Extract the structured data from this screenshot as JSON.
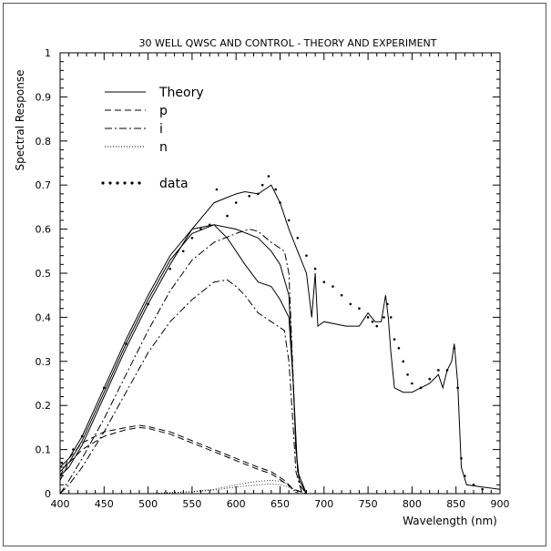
{
  "chart_data": {
    "type": "line",
    "title": "30 WELL QWSC AND CONTROL - THEORY AND EXPERIMENT",
    "xlabel": "Wavelength (nm)",
    "ylabel": "Spectral Response",
    "xlim": [
      400,
      900
    ],
    "ylim": [
      0,
      1
    ],
    "x_ticks": [
      400,
      450,
      500,
      550,
      600,
      650,
      700,
      750,
      800,
      850,
      900
    ],
    "y_ticks": [
      0,
      0.1,
      0.2,
      0.3,
      0.4,
      0.5,
      0.6,
      0.7,
      0.8,
      0.9,
      1
    ],
    "grid": false,
    "legend_position": "top-left",
    "legend": [
      {
        "label": "Theory",
        "style": "solid"
      },
      {
        "label": "p",
        "style": "dashed"
      },
      {
        "label": "i",
        "style": "dashdot"
      },
      {
        "label": "n",
        "style": "dotted"
      },
      {
        "label": "data",
        "style": "dots"
      }
    ],
    "series": [
      {
        "name": "Theory",
        "style": "solid",
        "points": [
          [
            400,
            0.05
          ],
          [
            410,
            0.07
          ],
          [
            425,
            0.12
          ],
          [
            450,
            0.23
          ],
          [
            475,
            0.34
          ],
          [
            500,
            0.44
          ],
          [
            525,
            0.53
          ],
          [
            550,
            0.59
          ],
          [
            575,
            0.61
          ],
          [
            590,
            0.58
          ],
          [
            600,
            0.55
          ],
          [
            610,
            0.52
          ],
          [
            625,
            0.48
          ],
          [
            640,
            0.47
          ],
          [
            650,
            0.44
          ],
          [
            660,
            0.4
          ],
          [
            665,
            0.25
          ],
          [
            668,
            0.1
          ],
          [
            672,
            0.03
          ],
          [
            680,
            0.0
          ],
          [
            700,
            0.0
          ],
          [
            800,
            0.0
          ],
          [
            900,
            0.0
          ]
        ]
      },
      {
        "name": "Theory",
        "style": "solid",
        "points": [
          [
            400,
            0.04
          ],
          [
            410,
            0.06
          ],
          [
            425,
            0.11
          ],
          [
            450,
            0.22
          ],
          [
            475,
            0.33
          ],
          [
            500,
            0.43
          ],
          [
            525,
            0.52
          ],
          [
            550,
            0.6
          ],
          [
            575,
            0.66
          ],
          [
            600,
            0.68
          ],
          [
            610,
            0.685
          ],
          [
            625,
            0.68
          ],
          [
            640,
            0.7
          ],
          [
            650,
            0.66
          ],
          [
            660,
            0.6
          ],
          [
            670,
            0.55
          ],
          [
            680,
            0.5
          ],
          [
            686,
            0.4
          ],
          [
            690,
            0.5
          ],
          [
            693,
            0.38
          ],
          [
            700,
            0.39
          ],
          [
            725,
            0.38
          ],
          [
            740,
            0.38
          ],
          [
            750,
            0.41
          ],
          [
            758,
            0.39
          ],
          [
            765,
            0.39
          ],
          [
            770,
            0.45
          ],
          [
            773,
            0.4
          ],
          [
            776,
            0.32
          ],
          [
            780,
            0.24
          ],
          [
            790,
            0.23
          ],
          [
            800,
            0.23
          ],
          [
            810,
            0.24
          ],
          [
            820,
            0.25
          ],
          [
            830,
            0.27
          ],
          [
            835,
            0.24
          ],
          [
            840,
            0.28
          ],
          [
            845,
            0.3
          ],
          [
            848,
            0.34
          ],
          [
            852,
            0.25
          ],
          [
            856,
            0.06
          ],
          [
            862,
            0.02
          ],
          [
            880,
            0.015
          ],
          [
            900,
            0.01
          ]
        ]
      },
      {
        "name": "Theory",
        "style": "solid",
        "points": [
          [
            400,
            0.06
          ],
          [
            410,
            0.08
          ],
          [
            425,
            0.13
          ],
          [
            450,
            0.24
          ],
          [
            475,
            0.35
          ],
          [
            500,
            0.45
          ],
          [
            525,
            0.54
          ],
          [
            550,
            0.6
          ],
          [
            575,
            0.61
          ],
          [
            600,
            0.6
          ],
          [
            625,
            0.58
          ],
          [
            640,
            0.55
          ],
          [
            650,
            0.52
          ],
          [
            660,
            0.45
          ],
          [
            665,
            0.25
          ],
          [
            670,
            0.05
          ],
          [
            680,
            0.0
          ],
          [
            700,
            0.0
          ],
          [
            900,
            0.0
          ]
        ]
      },
      {
        "name": "p",
        "style": "dashed",
        "points": [
          [
            400,
            0.04
          ],
          [
            410,
            0.08
          ],
          [
            425,
            0.115
          ],
          [
            450,
            0.14
          ],
          [
            475,
            0.15
          ],
          [
            490,
            0.155
          ],
          [
            500,
            0.152
          ],
          [
            525,
            0.14
          ],
          [
            550,
            0.12
          ],
          [
            575,
            0.1
          ],
          [
            600,
            0.08
          ],
          [
            625,
            0.06
          ],
          [
            640,
            0.05
          ],
          [
            655,
            0.03
          ],
          [
            665,
            0.01
          ],
          [
            680,
            0.0
          ],
          [
            900,
            0.0
          ]
        ]
      },
      {
        "name": "p",
        "style": "dashed",
        "points": [
          [
            400,
            0.03
          ],
          [
            410,
            0.07
          ],
          [
            425,
            0.1
          ],
          [
            450,
            0.13
          ],
          [
            475,
            0.145
          ],
          [
            490,
            0.15
          ],
          [
            500,
            0.148
          ],
          [
            525,
            0.135
          ],
          [
            550,
            0.115
          ],
          [
            575,
            0.095
          ],
          [
            600,
            0.075
          ],
          [
            625,
            0.055
          ],
          [
            640,
            0.045
          ],
          [
            655,
            0.025
          ],
          [
            665,
            0.01
          ],
          [
            680,
            0.0
          ],
          [
            900,
            0.0
          ]
        ]
      },
      {
        "name": "i",
        "style": "dashdot",
        "points": [
          [
            400,
            0.0
          ],
          [
            410,
            0.03
          ],
          [
            425,
            0.08
          ],
          [
            450,
            0.17
          ],
          [
            475,
            0.27
          ],
          [
            500,
            0.37
          ],
          [
            525,
            0.46
          ],
          [
            550,
            0.53
          ],
          [
            575,
            0.57
          ],
          [
            600,
            0.59
          ],
          [
            615,
            0.6
          ],
          [
            625,
            0.595
          ],
          [
            640,
            0.57
          ],
          [
            655,
            0.55
          ],
          [
            660,
            0.5
          ],
          [
            665,
            0.26
          ],
          [
            668,
            0.1
          ],
          [
            672,
            0.02
          ],
          [
            680,
            0.0
          ],
          [
            900,
            0.0
          ]
        ]
      },
      {
        "name": "i",
        "style": "dashdot",
        "points": [
          [
            400,
            0.0
          ],
          [
            410,
            0.02
          ],
          [
            425,
            0.06
          ],
          [
            450,
            0.14
          ],
          [
            475,
            0.23
          ],
          [
            500,
            0.32
          ],
          [
            525,
            0.39
          ],
          [
            550,
            0.44
          ],
          [
            575,
            0.48
          ],
          [
            590,
            0.485
          ],
          [
            600,
            0.47
          ],
          [
            610,
            0.45
          ],
          [
            625,
            0.41
          ],
          [
            640,
            0.39
          ],
          [
            655,
            0.37
          ],
          [
            660,
            0.3
          ],
          [
            665,
            0.15
          ],
          [
            668,
            0.05
          ],
          [
            675,
            0.0
          ],
          [
            900,
            0.0
          ]
        ]
      },
      {
        "name": "n",
        "style": "dotted",
        "points": [
          [
            400,
            0.0
          ],
          [
            500,
            0.0
          ],
          [
            550,
            0.005
          ],
          [
            575,
            0.01
          ],
          [
            600,
            0.02
          ],
          [
            625,
            0.028
          ],
          [
            640,
            0.03
          ],
          [
            650,
            0.028
          ],
          [
            660,
            0.02
          ],
          [
            665,
            0.01
          ],
          [
            670,
            0.0
          ],
          [
            900,
            0.0
          ]
        ]
      },
      {
        "name": "n",
        "style": "dotted",
        "points": [
          [
            400,
            0.0
          ],
          [
            500,
            0.0
          ],
          [
            550,
            0.004
          ],
          [
            575,
            0.008
          ],
          [
            600,
            0.015
          ],
          [
            625,
            0.02
          ],
          [
            640,
            0.022
          ],
          [
            650,
            0.02
          ],
          [
            660,
            0.015
          ],
          [
            665,
            0.007
          ],
          [
            670,
            0.0
          ],
          [
            900,
            0.0
          ]
        ]
      },
      {
        "name": "data",
        "style": "dots",
        "points": [
          [
            402,
            0.07
          ],
          [
            415,
            0.1
          ],
          [
            425,
            0.13
          ],
          [
            450,
            0.24
          ],
          [
            475,
            0.34
          ],
          [
            500,
            0.43
          ],
          [
            525,
            0.51
          ],
          [
            540,
            0.55
          ],
          [
            550,
            0.58
          ],
          [
            560,
            0.6
          ],
          [
            570,
            0.61
          ],
          [
            578,
            0.69
          ],
          [
            590,
            0.63
          ],
          [
            600,
            0.66
          ],
          [
            615,
            0.675
          ],
          [
            625,
            0.68
          ],
          [
            630,
            0.7
          ],
          [
            637,
            0.72
          ],
          [
            645,
            0.69
          ],
          [
            650,
            0.66
          ],
          [
            660,
            0.62
          ],
          [
            670,
            0.58
          ],
          [
            680,
            0.54
          ],
          [
            690,
            0.51
          ],
          [
            700,
            0.48
          ],
          [
            710,
            0.47
          ],
          [
            720,
            0.45
          ],
          [
            730,
            0.43
          ],
          [
            740,
            0.42
          ],
          [
            750,
            0.4
          ],
          [
            755,
            0.39
          ],
          [
            760,
            0.38
          ],
          [
            768,
            0.4
          ],
          [
            772,
            0.43
          ],
          [
            776,
            0.4
          ],
          [
            780,
            0.35
          ],
          [
            785,
            0.33
          ],
          [
            790,
            0.3
          ],
          [
            795,
            0.27
          ],
          [
            800,
            0.25
          ],
          [
            810,
            0.24
          ],
          [
            820,
            0.26
          ],
          [
            830,
            0.28
          ],
          [
            840,
            0.28
          ],
          [
            848,
            0.33
          ],
          [
            852,
            0.24
          ],
          [
            856,
            0.08
          ],
          [
            860,
            0.04
          ],
          [
            870,
            0.02
          ],
          [
            880,
            0.01
          ]
        ]
      }
    ]
  }
}
